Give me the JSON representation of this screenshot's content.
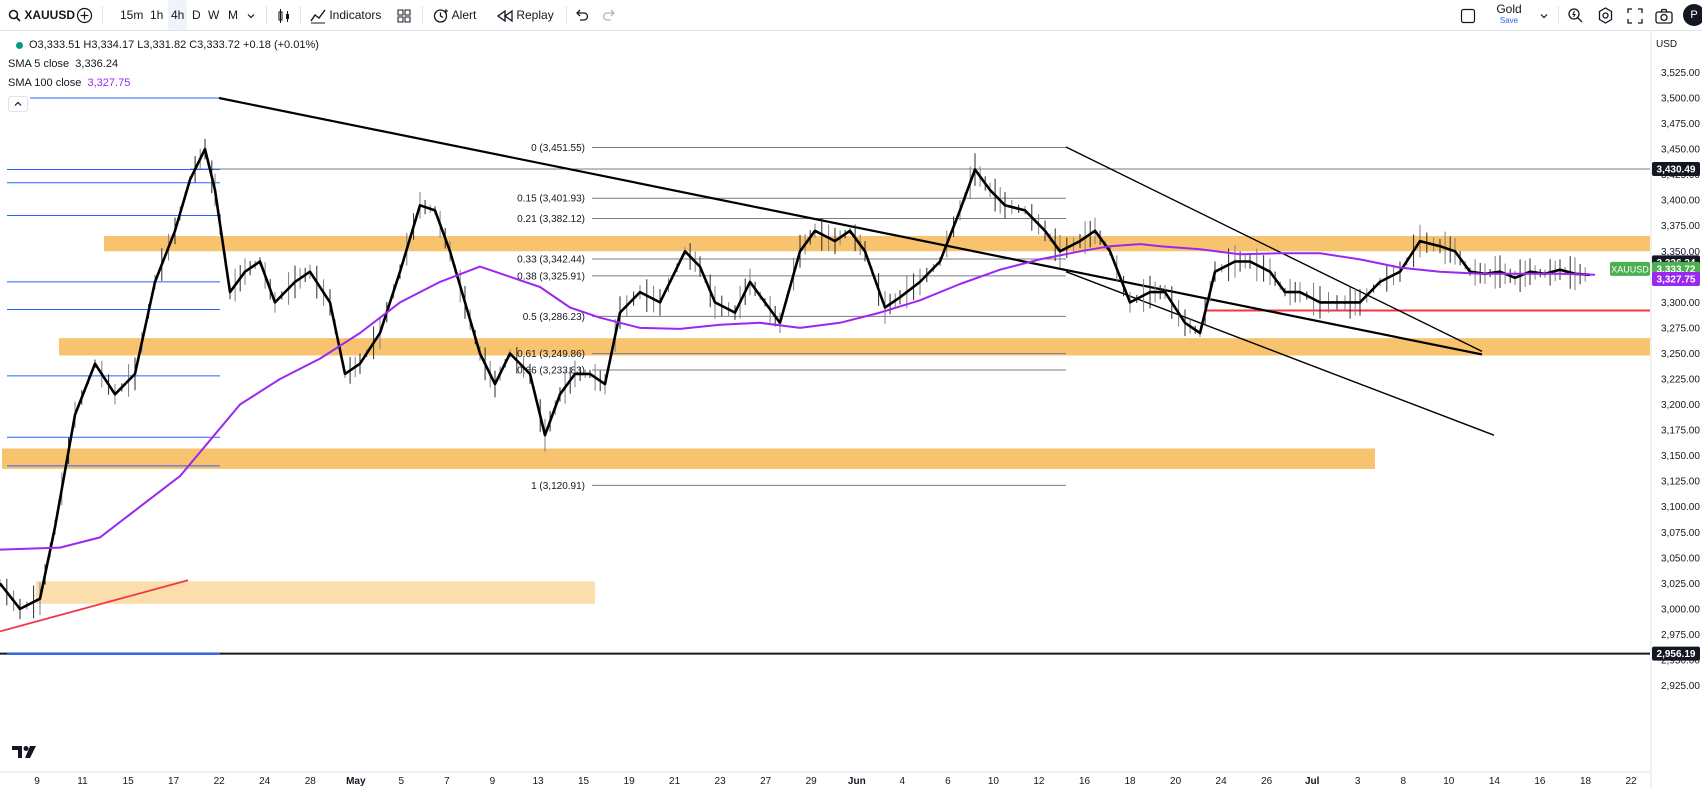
{
  "toolbar": {
    "symbol": "XAUUSD",
    "timeframes": [
      "15m",
      "1h",
      "4h",
      "D",
      "W",
      "M"
    ],
    "active_timeframe": "4h",
    "indicators_label": "Indicators",
    "alert_label": "Alert",
    "replay_label": "Replay",
    "layout_name": "Gold",
    "layout_save": "Save",
    "avatar_letter": "P"
  },
  "currency": "USD",
  "legend": {
    "ohlc": "O3,333.51 H3,334.17 L3,331.82 C3,333.72 +0.18 (+0.01%)",
    "sma5_label": "SMA 5 close",
    "sma5_value": "3,336.24",
    "sma100_label": "SMA 100 close",
    "sma100_value": "3,327.75"
  },
  "colors": {
    "up": "#089981",
    "sma5": "#000000",
    "sma100": "#9c27f0",
    "zone": "#f7b955",
    "zone_light": "#fbd79e",
    "trend_red": "#f23645",
    "hline_blue": "#2962ff",
    "price_green": "#4caf50"
  },
  "chart_data": {
    "type": "line",
    "symbol_tag": "XAUUSD",
    "x_tick_labels": [
      "9",
      "11",
      "15",
      "17",
      "22",
      "24",
      "28",
      "May",
      "5",
      "7",
      "9",
      "13",
      "15",
      "19",
      "21",
      "23",
      "27",
      "29",
      "Jun",
      "4",
      "6",
      "10",
      "12",
      "16",
      "18",
      "20",
      "24",
      "26",
      "Jul",
      "3",
      "8",
      "10",
      "14",
      "16",
      "18",
      "22"
    ],
    "y_tick_labels": [
      "3,525.00",
      "3,500.00",
      "3,475.00",
      "3,450.00",
      "3,425.00",
      "3,400.00",
      "3,375.00",
      "3,350.00",
      "3,325.00",
      "3,300.00",
      "3,275.00",
      "3,250.00",
      "3,225.00",
      "3,200.00",
      "3,175.00",
      "3,150.00",
      "3,125.00",
      "3,100.00",
      "3,075.00",
      "3,050.00",
      "3,025.00",
      "3,000.00",
      "2,975.00",
      "2,950.00",
      "2,925.00"
    ],
    "y_ticks": [
      3525,
      3500,
      3475,
      3450,
      3425,
      3400,
      3375,
      3350,
      3325,
      3300,
      3275,
      3250,
      3225,
      3200,
      3175,
      3150,
      3125,
      3100,
      3075,
      3050,
      3025,
      3000,
      2975,
      2950,
      2925
    ],
    "ylim": [
      2910,
      3537
    ],
    "series": [
      {
        "name": "SMA 5 close",
        "points": [
          [
            0,
            3025
          ],
          [
            20,
            3000
          ],
          [
            40,
            3010
          ],
          [
            55,
            3080
          ],
          [
            75,
            3190
          ],
          [
            95,
            3240
          ],
          [
            115,
            3210
          ],
          [
            135,
            3230
          ],
          [
            155,
            3320
          ],
          [
            175,
            3370
          ],
          [
            190,
            3420
          ],
          [
            205,
            3450
          ],
          [
            215,
            3410
          ],
          [
            230,
            3310
          ],
          [
            245,
            3330
          ],
          [
            260,
            3340
          ],
          [
            275,
            3300
          ],
          [
            295,
            3320
          ],
          [
            310,
            3330
          ],
          [
            330,
            3300
          ],
          [
            345,
            3230
          ],
          [
            360,
            3240
          ],
          [
            380,
            3270
          ],
          [
            400,
            3330
          ],
          [
            420,
            3395
          ],
          [
            435,
            3390
          ],
          [
            450,
            3350
          ],
          [
            465,
            3300
          ],
          [
            480,
            3250
          ],
          [
            495,
            3220
          ],
          [
            510,
            3250
          ],
          [
            530,
            3230
          ],
          [
            545,
            3170
          ],
          [
            560,
            3210
          ],
          [
            575,
            3230
          ],
          [
            590,
            3230
          ],
          [
            605,
            3220
          ],
          [
            620,
            3290
          ],
          [
            640,
            3310
          ],
          [
            660,
            3300
          ],
          [
            685,
            3350
          ],
          [
            700,
            3335
          ],
          [
            715,
            3300
          ],
          [
            735,
            3290
          ],
          [
            750,
            3320
          ],
          [
            765,
            3300
          ],
          [
            780,
            3280
          ],
          [
            800,
            3350
          ],
          [
            815,
            3370
          ],
          [
            835,
            3360
          ],
          [
            850,
            3370
          ],
          [
            865,
            3350
          ],
          [
            885,
            3295
          ],
          [
            900,
            3305
          ],
          [
            920,
            3320
          ],
          [
            940,
            3340
          ],
          [
            960,
            3390
          ],
          [
            975,
            3430
          ],
          [
            990,
            3410
          ],
          [
            1005,
            3395
          ],
          [
            1025,
            3390
          ],
          [
            1045,
            3370
          ],
          [
            1060,
            3350
          ],
          [
            1080,
            3360
          ],
          [
            1095,
            3370
          ],
          [
            1110,
            3350
          ],
          [
            1130,
            3300
          ],
          [
            1150,
            3310
          ],
          [
            1165,
            3310
          ],
          [
            1185,
            3280
          ],
          [
            1200,
            3270
          ],
          [
            1215,
            3330
          ],
          [
            1235,
            3340
          ],
          [
            1250,
            3340
          ],
          [
            1270,
            3330
          ],
          [
            1285,
            3310
          ],
          [
            1300,
            3310
          ],
          [
            1320,
            3300
          ],
          [
            1345,
            3300
          ],
          [
            1360,
            3300
          ],
          [
            1380,
            3320
          ],
          [
            1400,
            3330
          ],
          [
            1420,
            3360
          ],
          [
            1440,
            3355
          ],
          [
            1455,
            3350
          ],
          [
            1470,
            3330
          ],
          [
            1485,
            3328
          ],
          [
            1500,
            3330
          ],
          [
            1515,
            3324
          ],
          [
            1530,
            3330
          ],
          [
            1545,
            3328
          ],
          [
            1560,
            3332
          ],
          [
            1575,
            3328
          ],
          [
            1590,
            3327
          ]
        ]
      },
      {
        "name": "SMA 100 close",
        "points": [
          [
            0,
            3058
          ],
          [
            60,
            3060
          ],
          [
            100,
            3070
          ],
          [
            140,
            3100
          ],
          [
            180,
            3130
          ],
          [
            210,
            3165
          ],
          [
            240,
            3200
          ],
          [
            280,
            3225
          ],
          [
            320,
            3245
          ],
          [
            360,
            3270
          ],
          [
            400,
            3300
          ],
          [
            440,
            3320
          ],
          [
            480,
            3335
          ],
          [
            510,
            3325
          ],
          [
            540,
            3315
          ],
          [
            570,
            3295
          ],
          [
            600,
            3285
          ],
          [
            640,
            3275
          ],
          [
            680,
            3274
          ],
          [
            720,
            3278
          ],
          [
            760,
            3280
          ],
          [
            800,
            3275
          ],
          [
            840,
            3280
          ],
          [
            880,
            3290
          ],
          [
            920,
            3302
          ],
          [
            960,
            3318
          ],
          [
            1000,
            3332
          ],
          [
            1040,
            3342
          ],
          [
            1080,
            3350
          ],
          [
            1110,
            3355
          ],
          [
            1140,
            3357
          ],
          [
            1160,
            3355
          ],
          [
            1200,
            3352
          ],
          [
            1240,
            3347
          ],
          [
            1280,
            3348
          ],
          [
            1320,
            3348
          ],
          [
            1360,
            3342
          ],
          [
            1400,
            3334
          ],
          [
            1440,
            3330
          ],
          [
            1480,
            3328
          ],
          [
            1520,
            3328
          ],
          [
            1560,
            3328
          ],
          [
            1595,
            3327
          ]
        ]
      }
    ],
    "fibonacci": {
      "levels": [
        {
          "label": "0 (3,451.55)",
          "value": 3451.55
        },
        {
          "label": "0.15 (3,401.93)",
          "value": 3401.93
        },
        {
          "label": "0.21 (3,382.12)",
          "value": 3382.12
        },
        {
          "label": "0.33 (3,342.44)",
          "value": 3342.44
        },
        {
          "label": "0.38 (3,325.91)",
          "value": 3325.91
        },
        {
          "label": "0.5 (3,286.23)",
          "value": 3286.23
        },
        {
          "label": "0.61 (3,249.86)",
          "value": 3249.86
        },
        {
          "label": "0.66 (3,233.83)",
          "value": 3233.83
        },
        {
          "label": "1 (3,120.91)",
          "value": 3120.91
        }
      ]
    },
    "price_labels": [
      {
        "label": "3,430.49",
        "value": 3430.49,
        "style": "dark"
      },
      {
        "label": "3,336.24",
        "value": 3336.24,
        "style": "dark"
      },
      {
        "label": "3,333.72",
        "value": 3333.72,
        "style": "green"
      },
      {
        "label": "3,327.75",
        "value": 3327.75,
        "style": "purple"
      },
      {
        "label": "2,956.19",
        "value": 2956.19,
        "style": "dark"
      }
    ],
    "zones": [
      {
        "from": 3350,
        "to": 3365,
        "shade": "zone"
      },
      {
        "from": 3248,
        "to": 3265,
        "shade": "zone"
      },
      {
        "from": 3137,
        "to": 3157,
        "shade": "zone"
      },
      {
        "from": 3005,
        "to": 3027,
        "shade": "zone_light"
      }
    ],
    "horizontal_lines": [
      {
        "value": 3430.49,
        "color": "#787b86"
      },
      {
        "value": 2956.19,
        "color": "#131722"
      },
      {
        "value": 3292,
        "color": "#f23645"
      }
    ],
    "blue_levels": [
      3500,
      3430,
      3417,
      3385,
      3320,
      3293,
      3228,
      3168,
      3140,
      2956
    ],
    "trend_lines": [
      {
        "from": [
          3500
        ],
        "to": [
          3249
        ],
        "color": "#000000"
      },
      {
        "from": [
          3452
        ],
        "to": [
          3252
        ],
        "color": "#000000"
      },
      {
        "from": [
          3250
        ],
        "to": [
          3170
        ],
        "color": "#000000"
      },
      {
        "from": [
          2978
        ],
        "to": [
          3028
        ],
        "color": "#f23645"
      }
    ],
    "grid": false,
    "legend_position": "top-left"
  }
}
